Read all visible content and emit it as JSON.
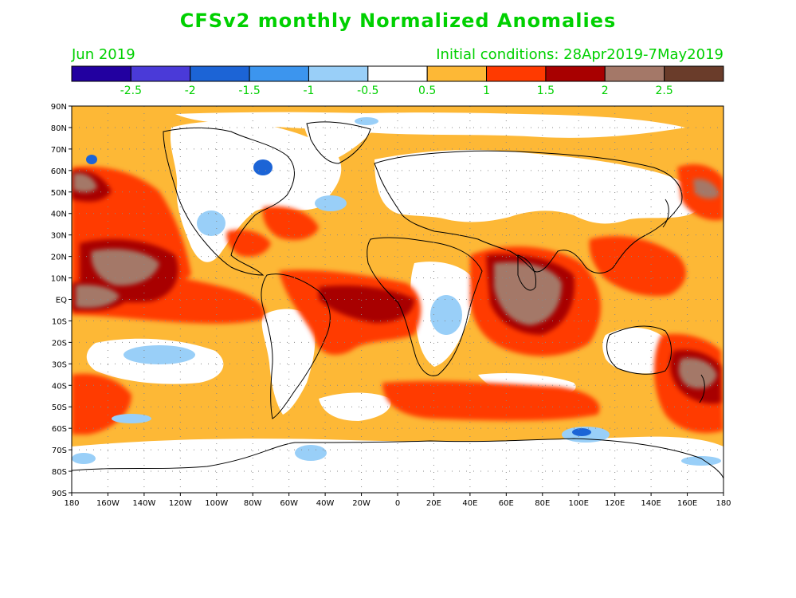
{
  "title": "CFSv2 monthly Normalized Anomalies",
  "valid_month": "Jun 2019",
  "initial_conditions": "Initial conditions: 28Apr2019-7May2019",
  "colorbar": {
    "colors": [
      "#2200a0",
      "#4a3ad8",
      "#1c64d6",
      "#3c95ee",
      "#99cff8",
      "#ffffff",
      "#fdb836",
      "#ff3a00",
      "#a80000",
      "#a47868",
      "#6a3c2a"
    ],
    "labels": [
      "-2.5",
      "-2",
      "-1.5",
      "-1",
      "-0.5",
      "0.5",
      "1",
      "1.5",
      "2",
      "2.5"
    ]
  },
  "lat_labels": [
    "90N",
    "80N",
    "70N",
    "60N",
    "50N",
    "40N",
    "30N",
    "20N",
    "10N",
    "EQ",
    "10S",
    "20S",
    "30S",
    "40S",
    "50S",
    "60S",
    "70S",
    "80S",
    "90S"
  ],
  "lon_labels": [
    "180",
    "160W",
    "140W",
    "120W",
    "100W",
    "80W",
    "60W",
    "40W",
    "20W",
    "0",
    "20E",
    "40E",
    "60E",
    "80E",
    "100E",
    "120E",
    "140E",
    "160E",
    "180"
  ]
}
